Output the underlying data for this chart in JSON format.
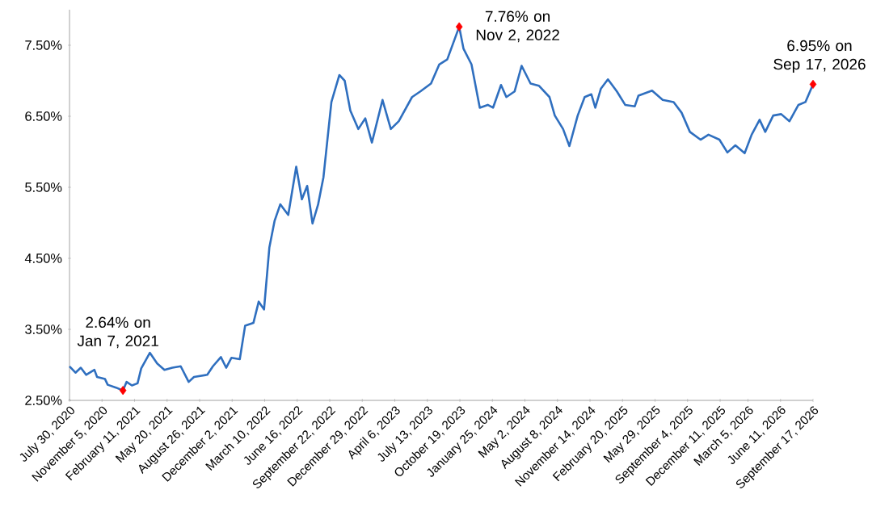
{
  "chart_data": {
    "type": "line",
    "xlim": [
      "2020-07-30",
      "2026-09-17"
    ],
    "ylim": [
      2.5,
      8
    ],
    "xticks": [
      {
        "value": "2020-07-30",
        "label": "July 30, 2020"
      },
      {
        "value": "2020-11-05",
        "label": "November 5, 2020"
      },
      {
        "value": "2021-02-11",
        "label": "February 11, 2021"
      },
      {
        "value": "2021-05-20",
        "label": "May 20, 2021"
      },
      {
        "value": "2021-08-26",
        "label": "August 26, 2021"
      },
      {
        "value": "2021-12-02",
        "label": "December 2, 2021"
      },
      {
        "value": "2022-03-10",
        "label": "March 10, 2022"
      },
      {
        "value": "2022-06-16",
        "label": "June 16, 2022"
      },
      {
        "value": "2022-09-22",
        "label": "September 22, 2022"
      },
      {
        "value": "2022-12-29",
        "label": "December 29, 2022"
      },
      {
        "value": "2023-04-06",
        "label": "April 6, 2023"
      },
      {
        "value": "2023-07-13",
        "label": "July 13, 2023"
      },
      {
        "value": "2023-10-19",
        "label": "October 19, 2023"
      },
      {
        "value": "2024-01-25",
        "label": "January 25, 2024"
      },
      {
        "value": "2024-05-02",
        "label": "May 2, 2024"
      },
      {
        "value": "2024-08-08",
        "label": "August 8, 2024"
      },
      {
        "value": "2024-11-14",
        "label": "November 14, 2024"
      },
      {
        "value": "2025-02-20",
        "label": "February 20, 2025"
      },
      {
        "value": "2025-05-29",
        "label": "May 29, 2025"
      },
      {
        "value": "2025-09-04",
        "label": "September 4, 2025"
      },
      {
        "value": "2025-12-11",
        "label": "December 11, 2025"
      },
      {
        "value": "2026-03-05",
        "label": "March 5, 2026"
      },
      {
        "value": "2026-06-11",
        "label": "June 11, 2026"
      },
      {
        "value": "2026-09-17",
        "label": "September 17, 2026"
      }
    ],
    "yticks": [
      {
        "value": 2.5,
        "label": "2.50%"
      },
      {
        "value": 3.5,
        "label": "3.50%"
      },
      {
        "value": 4.5,
        "label": "4.50%"
      },
      {
        "value": 5.5,
        "label": "5.50%"
      },
      {
        "value": 6.5,
        "label": "6.50%"
      },
      {
        "value": 7.5,
        "label": "7.50%"
      }
    ],
    "series": [
      {
        "color": "#2f6fbf",
        "x": [
          "2020-07-30",
          "2020-08-17",
          "2020-09-02",
          "2020-09-18",
          "2020-10-13",
          "2020-10-21",
          "2020-11-14",
          "2020-11-22",
          "2020-12-17",
          "2021-01-07",
          "2021-01-18",
          "2021-02-03",
          "2021-02-20",
          "2021-03-03",
          "2021-03-29",
          "2021-04-20",
          "2021-05-12",
          "2021-06-05",
          "2021-06-30",
          "2021-07-24",
          "2021-08-09",
          "2021-09-18",
          "2021-10-05",
          "2021-10-29",
          "2021-11-14",
          "2021-11-30",
          "2021-12-25",
          "2022-01-10",
          "2022-02-04",
          "2022-02-20",
          "2022-03-08",
          "2022-03-24",
          "2022-04-09",
          "2022-04-26",
          "2022-05-20",
          "2022-06-13",
          "2022-06-30",
          "2022-07-16",
          "2022-08-01",
          "2022-08-18",
          "2022-09-03",
          "2022-09-27",
          "2022-10-21",
          "2022-11-06",
          "2022-11-23",
          "2022-12-17",
          "2023-01-07",
          "2023-01-27",
          "2023-02-28",
          "2023-03-25",
          "2023-04-18",
          "2023-05-28",
          "2023-06-22",
          "2023-07-24",
          "2023-08-18",
          "2023-09-11",
          "2023-10-17",
          "2023-10-30",
          "2023-11-23",
          "2023-12-18",
          "2024-01-11",
          "2024-01-27",
          "2024-02-20",
          "2024-03-07",
          "2024-04-01",
          "2024-04-22",
          "2024-05-19",
          "2024-06-13",
          "2024-07-15",
          "2024-07-31",
          "2024-08-25",
          "2024-09-13",
          "2024-10-08",
          "2024-10-29",
          "2024-11-18",
          "2024-11-30",
          "2024-12-17",
          "2025-01-07",
          "2025-02-03",
          "2025-02-28",
          "2025-03-29",
          "2025-04-09",
          "2025-05-20",
          "2025-06-21",
          "2025-07-24",
          "2025-08-17",
          "2025-09-11",
          "2025-10-13",
          "2025-11-06",
          "2025-12-09",
          "2026-01-02",
          "2026-01-26",
          "2026-02-23",
          "2026-03-16",
          "2026-04-09",
          "2026-04-26",
          "2026-05-20",
          "2026-06-13",
          "2026-07-08",
          "2026-08-04",
          "2026-08-25",
          "2026-09-17"
        ],
        "values": [
          2.98,
          2.89,
          2.96,
          2.86,
          2.93,
          2.83,
          2.8,
          2.72,
          2.68,
          2.64,
          2.76,
          2.71,
          2.74,
          2.95,
          3.17,
          3.02,
          2.93,
          2.96,
          2.98,
          2.76,
          2.83,
          2.86,
          2.98,
          3.11,
          2.96,
          3.1,
          3.08,
          3.55,
          3.59,
          3.89,
          3.78,
          4.65,
          5.03,
          5.26,
          5.11,
          5.79,
          5.33,
          5.52,
          4.99,
          5.26,
          5.64,
          6.7,
          7.08,
          7.0,
          6.58,
          6.32,
          6.47,
          6.13,
          6.73,
          6.32,
          6.43,
          6.77,
          6.85,
          6.96,
          7.23,
          7.3,
          7.76,
          7.45,
          7.23,
          6.62,
          6.66,
          6.62,
          6.94,
          6.77,
          6.85,
          7.21,
          6.96,
          6.93,
          6.77,
          6.51,
          6.32,
          6.08,
          6.51,
          6.77,
          6.81,
          6.62,
          6.89,
          7.02,
          6.85,
          6.66,
          6.64,
          6.79,
          6.86,
          6.73,
          6.7,
          6.55,
          6.28,
          6.17,
          6.24,
          6.17,
          5.99,
          6.09,
          5.98,
          6.24,
          6.45,
          6.28,
          6.51,
          6.53,
          6.43,
          6.66,
          6.7,
          6.95
        ]
      },
      {
        "type": "scatter",
        "color": "#ff0000",
        "marker": "diamond",
        "x": [
          "2021-01-07",
          "2023-10-17",
          "2026-09-17"
        ],
        "values": [
          2.64,
          7.76,
          6.95
        ]
      }
    ],
    "annotations": [
      {
        "text": "2.64% on Jan 7, 2021",
        "x": "2021-01-07",
        "y": 2.64
      },
      {
        "text": "7.76% on Nov 2, 2022",
        "x": "2023-10-17",
        "y": 7.76
      },
      {
        "text": "6.95% on Sep 17, 2026",
        "x": "2026-09-17",
        "y": 6.95
      }
    ]
  }
}
